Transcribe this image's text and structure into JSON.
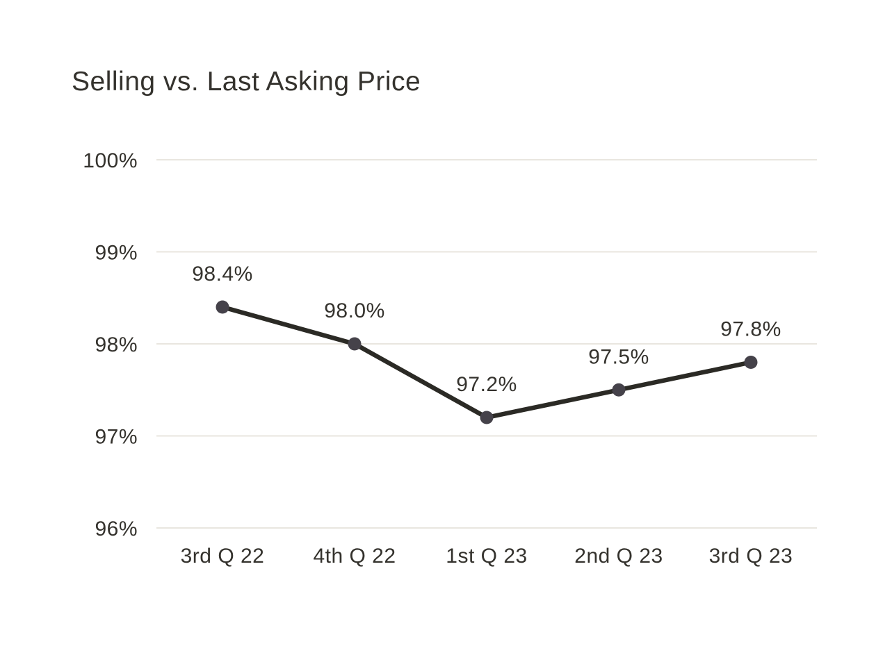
{
  "title": "Selling vs. Last Asking Price",
  "chart_data": {
    "type": "line",
    "title": "Selling vs. Last Asking Price",
    "categories": [
      "3rd Q 22",
      "4th Q 22",
      "1st Q 23",
      "2nd Q 23",
      "3rd Q 23"
    ],
    "series": [
      {
        "name": "Selling vs. Last Asking Price",
        "values": [
          98.4,
          98.0,
          97.2,
          97.5,
          97.8
        ],
        "data_labels": [
          "98.4%",
          "98.0%",
          "97.2%",
          "97.5%",
          "97.8%"
        ]
      }
    ],
    "xlabel": "",
    "ylabel": "",
    "ylim": [
      96,
      100
    ],
    "y_ticks": [
      {
        "value": 100,
        "label": "100%"
      },
      {
        "value": 99,
        "label": "99%"
      },
      {
        "value": 98,
        "label": "98%"
      },
      {
        "value": 97,
        "label": "97%"
      },
      {
        "value": 96,
        "label": "96%"
      }
    ],
    "grid": "horizontal-only",
    "legend_position": "none",
    "colors": {
      "line": "#2b2a25",
      "marker": "#45424a",
      "gridline": "#e9e6df",
      "tick_text": "#34322d",
      "label_text": "#35332e",
      "background": "#ffffff"
    }
  }
}
